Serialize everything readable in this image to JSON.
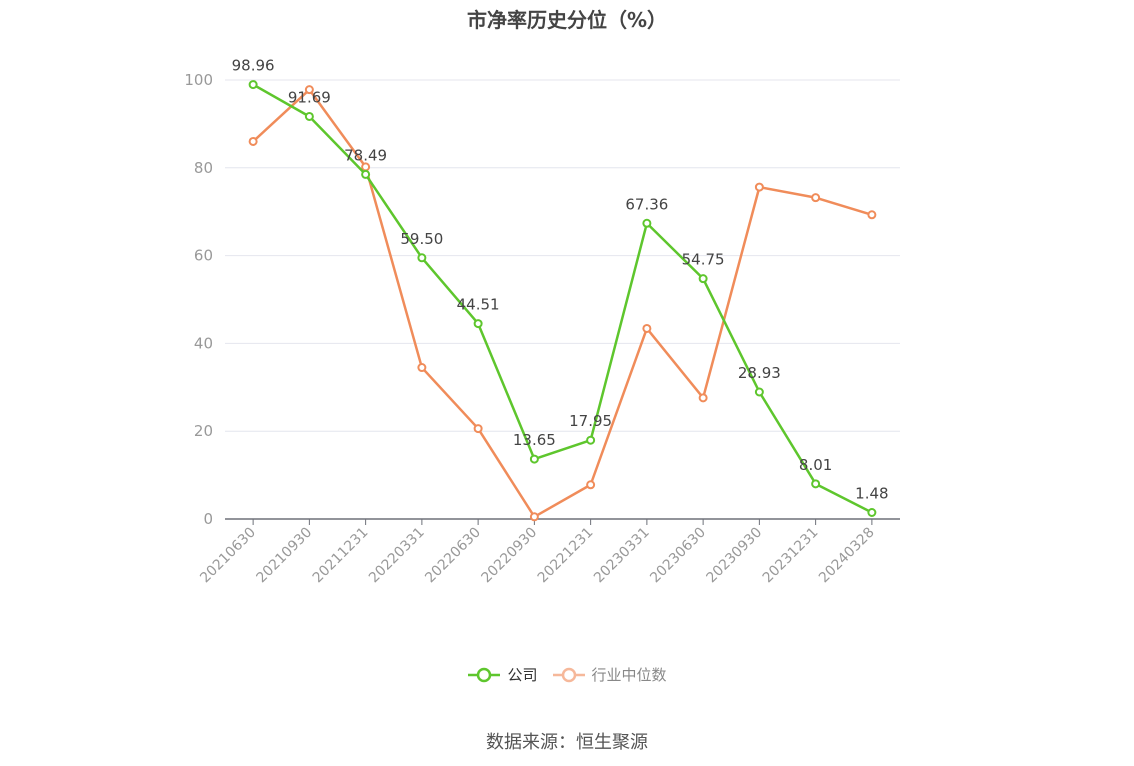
{
  "chart_data": {
    "type": "line",
    "title": "市净率历史分位（%）",
    "categories": [
      "20210630",
      "20210930",
      "20211231",
      "20220331",
      "20220630",
      "20220930",
      "20221231",
      "20230331",
      "20230630",
      "20230930",
      "20231231",
      "20240328"
    ],
    "ylim": [
      0,
      100
    ],
    "yticks": [
      0,
      20,
      40,
      60,
      80,
      100
    ],
    "grid": true,
    "legend_position": "bottom",
    "series": [
      {
        "name": "公司",
        "color": "#5ec62d",
        "show_labels": true,
        "values": [
          98.96,
          91.69,
          78.49,
          59.5,
          44.51,
          13.65,
          17.95,
          67.36,
          54.75,
          28.93,
          8.01,
          1.48
        ],
        "labels": [
          "98.96",
          "91.69",
          "78.49",
          "59.50",
          "44.51",
          "13.65",
          "17.95",
          "67.36",
          "54.75",
          "28.93",
          "8.01",
          "1.48"
        ]
      },
      {
        "name": "行业中位数",
        "color": "#f08c5a",
        "legend_color": "#f6b89a",
        "show_labels": false,
        "values": [
          86.0,
          97.8,
          80.2,
          34.5,
          20.6,
          0.5,
          7.8,
          43.4,
          27.6,
          75.6,
          73.2,
          69.3
        ]
      }
    ]
  },
  "source": "数据来源：恒生聚源"
}
